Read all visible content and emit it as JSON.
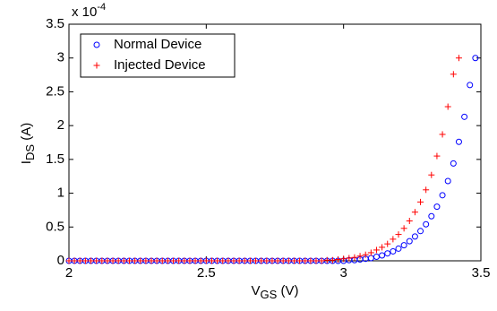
{
  "chart_data": {
    "type": "scatter",
    "xlabel": {
      "main": "V",
      "sub": "GS",
      "rest": " (V)"
    },
    "ylabel": {
      "main": "I",
      "sub": "DS",
      "rest": " (A)"
    },
    "y_multiplier": "x 10",
    "y_exponent": "-4",
    "xlim": [
      2,
      3.5
    ],
    "ylim": [
      0,
      3.5
    ],
    "xticks": [
      2,
      2.5,
      3,
      3.5
    ],
    "yticks": [
      0,
      0.5,
      1,
      1.5,
      2,
      2.5,
      3,
      3.5
    ],
    "legend": "upper left",
    "series": [
      {
        "name": "Normal Device",
        "color": "#0000ff",
        "marker": "circle",
        "x": [
          2,
          2.02,
          2.04,
          2.06,
          2.08,
          2.1,
          2.12,
          2.14,
          2.16,
          2.18,
          2.2,
          2.22,
          2.24,
          2.26,
          2.28,
          2.3,
          2.32,
          2.34,
          2.36,
          2.38,
          2.4,
          2.42,
          2.44,
          2.46,
          2.48,
          2.5,
          2.52,
          2.54,
          2.56,
          2.58,
          2.6,
          2.62,
          2.64,
          2.66,
          2.68,
          2.7,
          2.72,
          2.74,
          2.76,
          2.78,
          2.8,
          2.82,
          2.84,
          2.86,
          2.88,
          2.9,
          2.92,
          2.94,
          2.96,
          2.98,
          3,
          3.02,
          3.04,
          3.06,
          3.08,
          3.1,
          3.12,
          3.14,
          3.16,
          3.18,
          3.2,
          3.22,
          3.24,
          3.26,
          3.28,
          3.3,
          3.32,
          3.34,
          3.36,
          3.38,
          3.4,
          3.42,
          3.44,
          3.46,
          3.48
        ],
        "values": [
          0,
          0,
          0,
          0,
          0,
          0,
          0,
          0,
          0,
          0,
          0,
          0,
          0,
          0,
          0,
          0,
          0,
          0,
          0,
          0,
          0,
          0,
          0,
          0,
          0,
          0,
          0,
          0,
          0,
          0,
          0,
          0,
          0,
          0,
          0,
          0,
          0,
          0,
          0,
          0,
          0,
          0,
          0,
          0,
          0,
          0,
          0,
          0,
          0,
          0,
          0,
          0.01,
          0.01,
          0.02,
          0.03,
          0.04,
          0.06,
          0.08,
          0.11,
          0.14,
          0.18,
          0.23,
          0.29,
          0.36,
          0.44,
          0.54,
          0.66,
          0.8,
          0.97,
          1.18,
          1.44,
          1.76,
          2.13,
          2.6,
          3.0
        ]
      },
      {
        "name": "Injected Device",
        "color": "#ff0000",
        "marker": "plus",
        "x": [
          2,
          2.02,
          2.04,
          2.06,
          2.08,
          2.1,
          2.12,
          2.14,
          2.16,
          2.18,
          2.2,
          2.22,
          2.24,
          2.26,
          2.28,
          2.3,
          2.32,
          2.34,
          2.36,
          2.38,
          2.4,
          2.42,
          2.44,
          2.46,
          2.48,
          2.5,
          2.52,
          2.54,
          2.56,
          2.58,
          2.6,
          2.62,
          2.64,
          2.66,
          2.68,
          2.7,
          2.72,
          2.74,
          2.76,
          2.78,
          2.8,
          2.82,
          2.84,
          2.86,
          2.88,
          2.9,
          2.92,
          2.94,
          2.96,
          2.98,
          3,
          3.02,
          3.04,
          3.06,
          3.08,
          3.1,
          3.12,
          3.14,
          3.16,
          3.18,
          3.2,
          3.22,
          3.24,
          3.26,
          3.28,
          3.3,
          3.32,
          3.34,
          3.36,
          3.38,
          3.4,
          3.42
        ],
        "values": [
          0,
          0,
          0,
          0,
          0,
          0,
          0,
          0,
          0,
          0,
          0,
          0,
          0,
          0,
          0,
          0,
          0,
          0,
          0,
          0,
          0,
          0,
          0,
          0,
          0,
          0,
          0,
          0,
          0,
          0,
          0,
          0,
          0,
          0,
          0,
          0,
          0,
          0,
          0,
          0,
          0,
          0,
          0,
          0,
          0,
          0,
          0,
          0.01,
          0.01,
          0.02,
          0.03,
          0.04,
          0.05,
          0.07,
          0.09,
          0.12,
          0.16,
          0.2,
          0.25,
          0.32,
          0.39,
          0.48,
          0.59,
          0.72,
          0.87,
          1.05,
          1.27,
          1.55,
          1.87,
          2.28,
          2.76,
          3.0
        ]
      }
    ]
  }
}
